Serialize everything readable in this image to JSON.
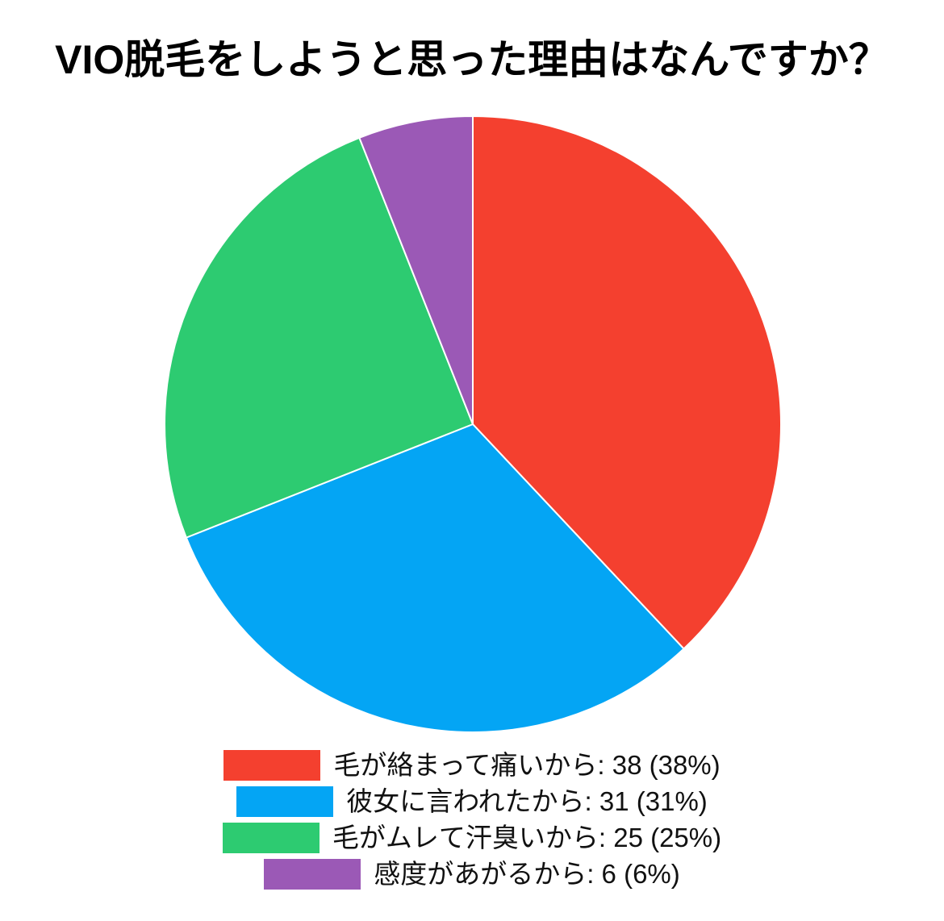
{
  "page": {
    "background_color": "#ffffff"
  },
  "title": "VIO脱毛をしようと思った理由はなんですか？",
  "chart_data": {
    "type": "pie",
    "title": "VIO脱毛をしようと思った理由はなんですか？",
    "categories": [
      "毛が絡まって痛いから",
      "彼女に言われたから",
      "毛がムレて汗臭いから",
      "感度があがるから"
    ],
    "values": [
      38,
      31,
      25,
      6
    ],
    "percentages": [
      38,
      31,
      25,
      6
    ],
    "colors": [
      "#f4402f",
      "#04a5f4",
      "#2dcb71",
      "#9b59b6"
    ],
    "slice_border_color": "#ffffff",
    "slice_border_width": 2,
    "start_angle_deg": 0,
    "direction": "clockwise",
    "legend_position": "bottom",
    "legend_labels": [
      "毛が絡まって痛いから: 38 (38%)",
      "彼女に言われたから: 31 (31%)",
      "毛がムレて汗臭いから: 25 (25%)",
      "感度があがるから: 6 (6%)"
    ]
  }
}
